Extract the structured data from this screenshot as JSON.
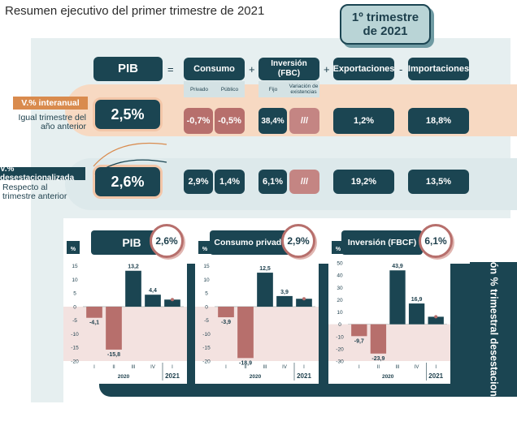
{
  "title": "Resumen ejecutivo del primer trimestre de 2021",
  "quarter": {
    "line1": "1º trimestre",
    "line2": "de 2021"
  },
  "headers": {
    "pib": "PIB",
    "consumo": "Consumo",
    "consumo_sub1": "Privado",
    "consumo_sub2": "Público",
    "inversion": "Inversión\n(FBC)",
    "inversion_sub1": "Fijo",
    "inversion_sub2": "Variación de existencias",
    "exportaciones": "Exportaciones",
    "importaciones": "Importaciones"
  },
  "operators": {
    "eq": "=",
    "plus1": "+",
    "plus2": "+",
    "minus": "-"
  },
  "row1": {
    "label": "V.% interanual",
    "sub": "Igual trimestre del año anterior",
    "pib": "2,5%",
    "privado": "-0,7%",
    "publico": "-0,5%",
    "fijo": "38,4%",
    "existencias": "///",
    "exportaciones": "1,2%",
    "importaciones": "18,8%"
  },
  "row2": {
    "label": "V.% desestacionalizada",
    "sub": "Respecto al trimestre anterior",
    "pib": "2,6%",
    "privado": "2,9%",
    "publico": "1,4%",
    "fijo": "6,1%",
    "existencias": "///",
    "exportaciones": "19,2%",
    "importaciones": "13,5%"
  },
  "vertical_banner": "Variación % trimestral desestacionalizada",
  "colors": {
    "teal": "#1b4552",
    "rose": "#b76f6c",
    "peach": "#f7d9c2",
    "light": "#e6eff0"
  },
  "chart_data": [
    {
      "type": "bar",
      "title": "PIB",
      "highlight": "2,6%",
      "ylabel": "%",
      "categories": [
        "I",
        "II",
        "III",
        "IV",
        "I"
      ],
      "groups": [
        "2020",
        "2021"
      ],
      "values": [
        -4.1,
        -15.8,
        13.2,
        4.4,
        2.6
      ],
      "labels": [
        "-4,1",
        "-15,8",
        "13,2",
        "4,4",
        ""
      ],
      "yticks": [
        15,
        10,
        5,
        0,
        -5,
        -10,
        -15,
        -20
      ],
      "ylim": [
        -20,
        17
      ]
    },
    {
      "type": "bar",
      "title": "Consumo privado",
      "highlight": "2,9%",
      "ylabel": "%",
      "categories": [
        "I",
        "II",
        "III",
        "IV",
        "I"
      ],
      "groups": [
        "2020",
        "2021"
      ],
      "values": [
        -3.9,
        -18.9,
        12.5,
        3.9,
        2.9
      ],
      "labels": [
        "-3,9",
        "-18,9",
        "12,5",
        "3,9",
        ""
      ],
      "yticks": [
        15,
        10,
        5,
        0,
        -5,
        -10,
        -15,
        -20
      ],
      "ylim": [
        -20,
        17
      ]
    },
    {
      "type": "bar",
      "title": "Inversión (FBCF)",
      "highlight": "6,1%",
      "ylabel": "%",
      "categories": [
        "I",
        "II",
        "III",
        "IV",
        "I"
      ],
      "groups": [
        "2020",
        "2021"
      ],
      "values": [
        -9.7,
        -23.9,
        43.9,
        16.9,
        6.1
      ],
      "labels": [
        "-9,7",
        "-23,9",
        "43,9",
        "16,9",
        ""
      ],
      "yticks": [
        50,
        40,
        30,
        20,
        10,
        0,
        -10,
        -20,
        -30
      ],
      "ylim": [
        -30,
        52
      ]
    }
  ]
}
